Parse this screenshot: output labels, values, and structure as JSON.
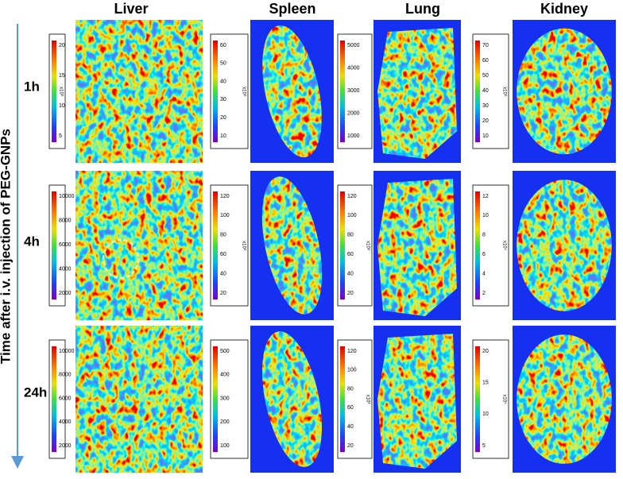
{
  "figure": {
    "columns": [
      "Liver",
      "Spleen",
      "Lung",
      "Kidney"
    ],
    "axis_label": "Time after i.v. injection of PEG-GNPs",
    "rows": [
      {
        "label": "1h",
        "colorbars": [
          {
            "ticks": [
              "20",
              "15",
              "10",
              "5"
            ],
            "unit": "x10³"
          },
          {
            "ticks": [
              "60",
              "50",
              "40",
              "30",
              "20",
              "10"
            ],
            "unit": "x10³"
          },
          {
            "ticks": [
              "5000",
              "4000",
              "3000",
              "2000",
              "1000"
            ]
          },
          {
            "ticks": [
              "70",
              "60",
              "50",
              "40",
              "30",
              "20",
              "10"
            ],
            "unit": "x10³"
          }
        ]
      },
      {
        "label": "4h",
        "colorbars": [
          {
            "ticks": [
              "10000",
              "8000",
              "6000",
              "4000",
              "2000"
            ]
          },
          {
            "ticks": [
              "120",
              "100",
              "80",
              "60",
              "40",
              "20"
            ],
            "unit": "x10³"
          },
          {
            "ticks": [
              "120",
              "100",
              "80",
              "60",
              "40",
              "20"
            ],
            "unit": "x10³"
          },
          {
            "ticks": [
              "12",
              "10",
              "8",
              "6",
              "4",
              "2"
            ],
            "unit": "x10⁴"
          }
        ]
      },
      {
        "label": "24h",
        "colorbars": [
          {
            "ticks": [
              "10000",
              "8000",
              "6000",
              "4000",
              "2000"
            ]
          },
          {
            "ticks": [
              "500",
              "400",
              "300",
              "200",
              "100"
            ]
          },
          {
            "ticks": [
              "120",
              "100",
              "80",
              "60",
              "40",
              "20"
            ],
            "unit": "x10³"
          },
          {
            "ticks": [
              "20",
              "15",
              "10",
              "5"
            ],
            "unit": "x10⁴"
          }
        ]
      }
    ]
  }
}
